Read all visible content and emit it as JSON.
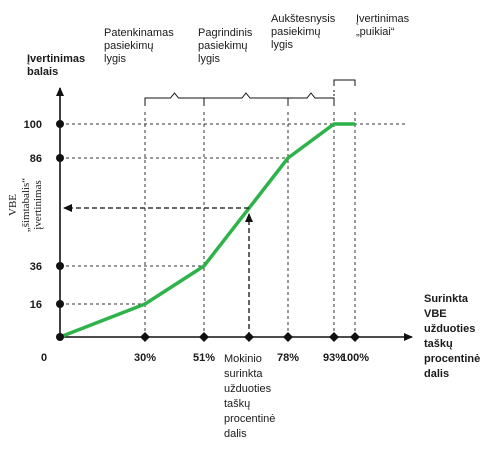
{
  "chart_data": {
    "type": "line",
    "y_axis_title": [
      "Įvertinimas",
      "balais"
    ],
    "y_axis_side_label": [
      "VBE",
      "„šimtabalis“",
      "įvertinimas"
    ],
    "x_axis_title": [
      "Surinkta",
      "VBE",
      "užduoties",
      "taškų",
      "procentinė",
      "dalis"
    ],
    "origin_label": "0",
    "x_ticks": [
      {
        "value": 30,
        "label": "30%"
      },
      {
        "value": 51,
        "label": "51%"
      },
      {
        "value": 78,
        "label": "78%"
      },
      {
        "value": 93,
        "label": "93%"
      },
      {
        "value": 100,
        "label": "100%"
      }
    ],
    "y_ticks": [
      {
        "value": 16,
        "label": "16"
      },
      {
        "value": 36,
        "label": "36"
      },
      {
        "value": 86,
        "label": "86"
      },
      {
        "value": 100,
        "label": "100"
      }
    ],
    "series": [
      {
        "color": "#2db34a",
        "points": [
          [
            0,
            0
          ],
          [
            30,
            16
          ],
          [
            51,
            36
          ],
          [
            78,
            86
          ],
          [
            93,
            100
          ],
          [
            100,
            100
          ]
        ]
      }
    ],
    "example_point_label": [
      "Mokinio",
      "surinkta",
      "užduoties",
      "taškų",
      "procentinė",
      "dalis"
    ],
    "levels": [
      {
        "label": [
          "Patenkinamas",
          "pasiekimų",
          "lygis"
        ],
        "from": 30,
        "to": 51
      },
      {
        "label": [
          "Pagrindinis",
          "pasiekimų",
          "lygis"
        ],
        "from": 51,
        "to": 78
      },
      {
        "label": [
          "Aukštesnysis",
          "pasiekimų",
          "lygis"
        ],
        "from": 78,
        "to": 93
      },
      {
        "label": [
          "Įvertinimas",
          "„puikiai“"
        ],
        "from": 93,
        "to": 100
      }
    ],
    "grid": false,
    "colors": {
      "line": "#2db34a",
      "axis": "#111111"
    }
  }
}
